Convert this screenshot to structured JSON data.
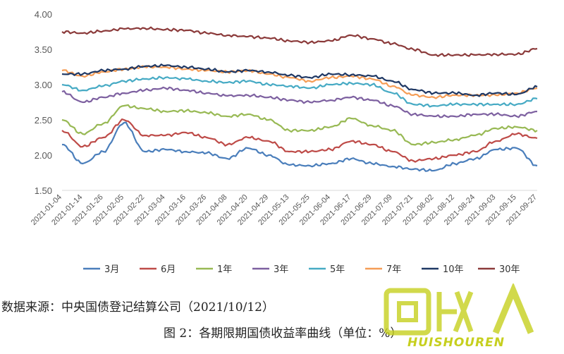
{
  "chart_data": {
    "type": "line",
    "title": "",
    "xlabel": "",
    "ylabel": "",
    "ylim": [
      1.5,
      4.0
    ],
    "yticks": [
      "1.50",
      "2.00",
      "2.50",
      "3.00",
      "3.50",
      "4.00"
    ],
    "grid": false,
    "legend_position": "bottom",
    "categories": [
      "2021-01-04",
      "2021-01-14",
      "2021-01-26",
      "2021-02-05",
      "2021-02-22",
      "2021-03-04",
      "2021-03-16",
      "2021-03-26",
      "2021-04-08",
      "2021-04-20",
      "2021-04-29",
      "2021-05-13",
      "2021-05-25",
      "2021-06-04",
      "2021-06-17",
      "2021-06-29",
      "2021-07-09",
      "2021-07-21",
      "2021-08-02",
      "2021-08-12",
      "2021-08-24",
      "2021-09-03",
      "2021-09-15",
      "2021-09-27"
    ],
    "series": [
      {
        "name": "3月",
        "color": "#4a7ebb",
        "values": [
          2.15,
          1.88,
          2.05,
          2.46,
          2.05,
          2.08,
          2.05,
          2.03,
          1.95,
          2.1,
          2.0,
          1.86,
          1.85,
          1.88,
          1.95,
          1.88,
          1.84,
          1.8,
          1.78,
          1.88,
          1.95,
          2.08,
          2.1,
          1.85
        ]
      },
      {
        "name": "6月",
        "color": "#be4b48",
        "values": [
          2.35,
          2.12,
          2.25,
          2.5,
          2.28,
          2.28,
          2.32,
          2.25,
          2.15,
          2.25,
          2.2,
          2.05,
          2.05,
          2.08,
          2.2,
          2.15,
          2.05,
          1.92,
          1.95,
          2.0,
          2.05,
          2.2,
          2.3,
          2.24
        ]
      },
      {
        "name": "1年",
        "color": "#98b954",
        "values": [
          2.5,
          2.3,
          2.45,
          2.7,
          2.66,
          2.62,
          2.63,
          2.6,
          2.55,
          2.58,
          2.5,
          2.35,
          2.35,
          2.4,
          2.52,
          2.42,
          2.35,
          2.15,
          2.18,
          2.22,
          2.28,
          2.38,
          2.4,
          2.35
        ]
      },
      {
        "name": "3年",
        "color": "#7d60a0",
        "values": [
          2.9,
          2.75,
          2.82,
          2.88,
          2.92,
          2.95,
          2.92,
          2.88,
          2.84,
          2.85,
          2.82,
          2.78,
          2.75,
          2.78,
          2.82,
          2.78,
          2.7,
          2.58,
          2.55,
          2.55,
          2.58,
          2.58,
          2.55,
          2.62
        ]
      },
      {
        "name": "5年",
        "color": "#46aac4",
        "values": [
          3.0,
          2.92,
          2.98,
          3.05,
          3.08,
          3.1,
          3.08,
          3.05,
          3.03,
          3.05,
          3.0,
          2.98,
          2.95,
          3.0,
          3.02,
          3.0,
          2.88,
          2.72,
          2.7,
          2.72,
          2.72,
          2.72,
          2.72,
          2.8
        ]
      },
      {
        "name": "7年",
        "color": "#f59d56",
        "values": [
          3.2,
          3.12,
          3.18,
          3.22,
          3.25,
          3.25,
          3.22,
          3.2,
          3.18,
          3.2,
          3.15,
          3.1,
          3.05,
          3.1,
          3.12,
          3.08,
          2.98,
          2.85,
          2.82,
          2.85,
          2.85,
          2.85,
          2.88,
          2.95
        ]
      },
      {
        "name": "10年",
        "color": "#1f3864",
        "values": [
          3.15,
          3.15,
          3.2,
          3.22,
          3.26,
          3.27,
          3.25,
          3.22,
          3.18,
          3.2,
          3.18,
          3.13,
          3.1,
          3.15,
          3.14,
          3.12,
          3.05,
          2.93,
          2.88,
          2.88,
          2.85,
          2.88,
          2.86,
          2.97
        ]
      },
      {
        "name": "30年",
        "color": "#8b3a3a",
        "values": [
          3.75,
          3.73,
          3.76,
          3.79,
          3.8,
          3.78,
          3.77,
          3.73,
          3.7,
          3.68,
          3.66,
          3.62,
          3.6,
          3.62,
          3.7,
          3.65,
          3.58,
          3.5,
          3.42,
          3.42,
          3.42,
          3.43,
          3.43,
          3.51
        ]
      }
    ]
  },
  "footer": {
    "source": "数据来源：中央国债登记结算公司（2021/10/12）",
    "caption": "图 2：各期限期国债收益率曲线（单位：%）"
  },
  "watermark": {
    "text": "HUISHOUREN",
    "logo_text": "回收"
  }
}
